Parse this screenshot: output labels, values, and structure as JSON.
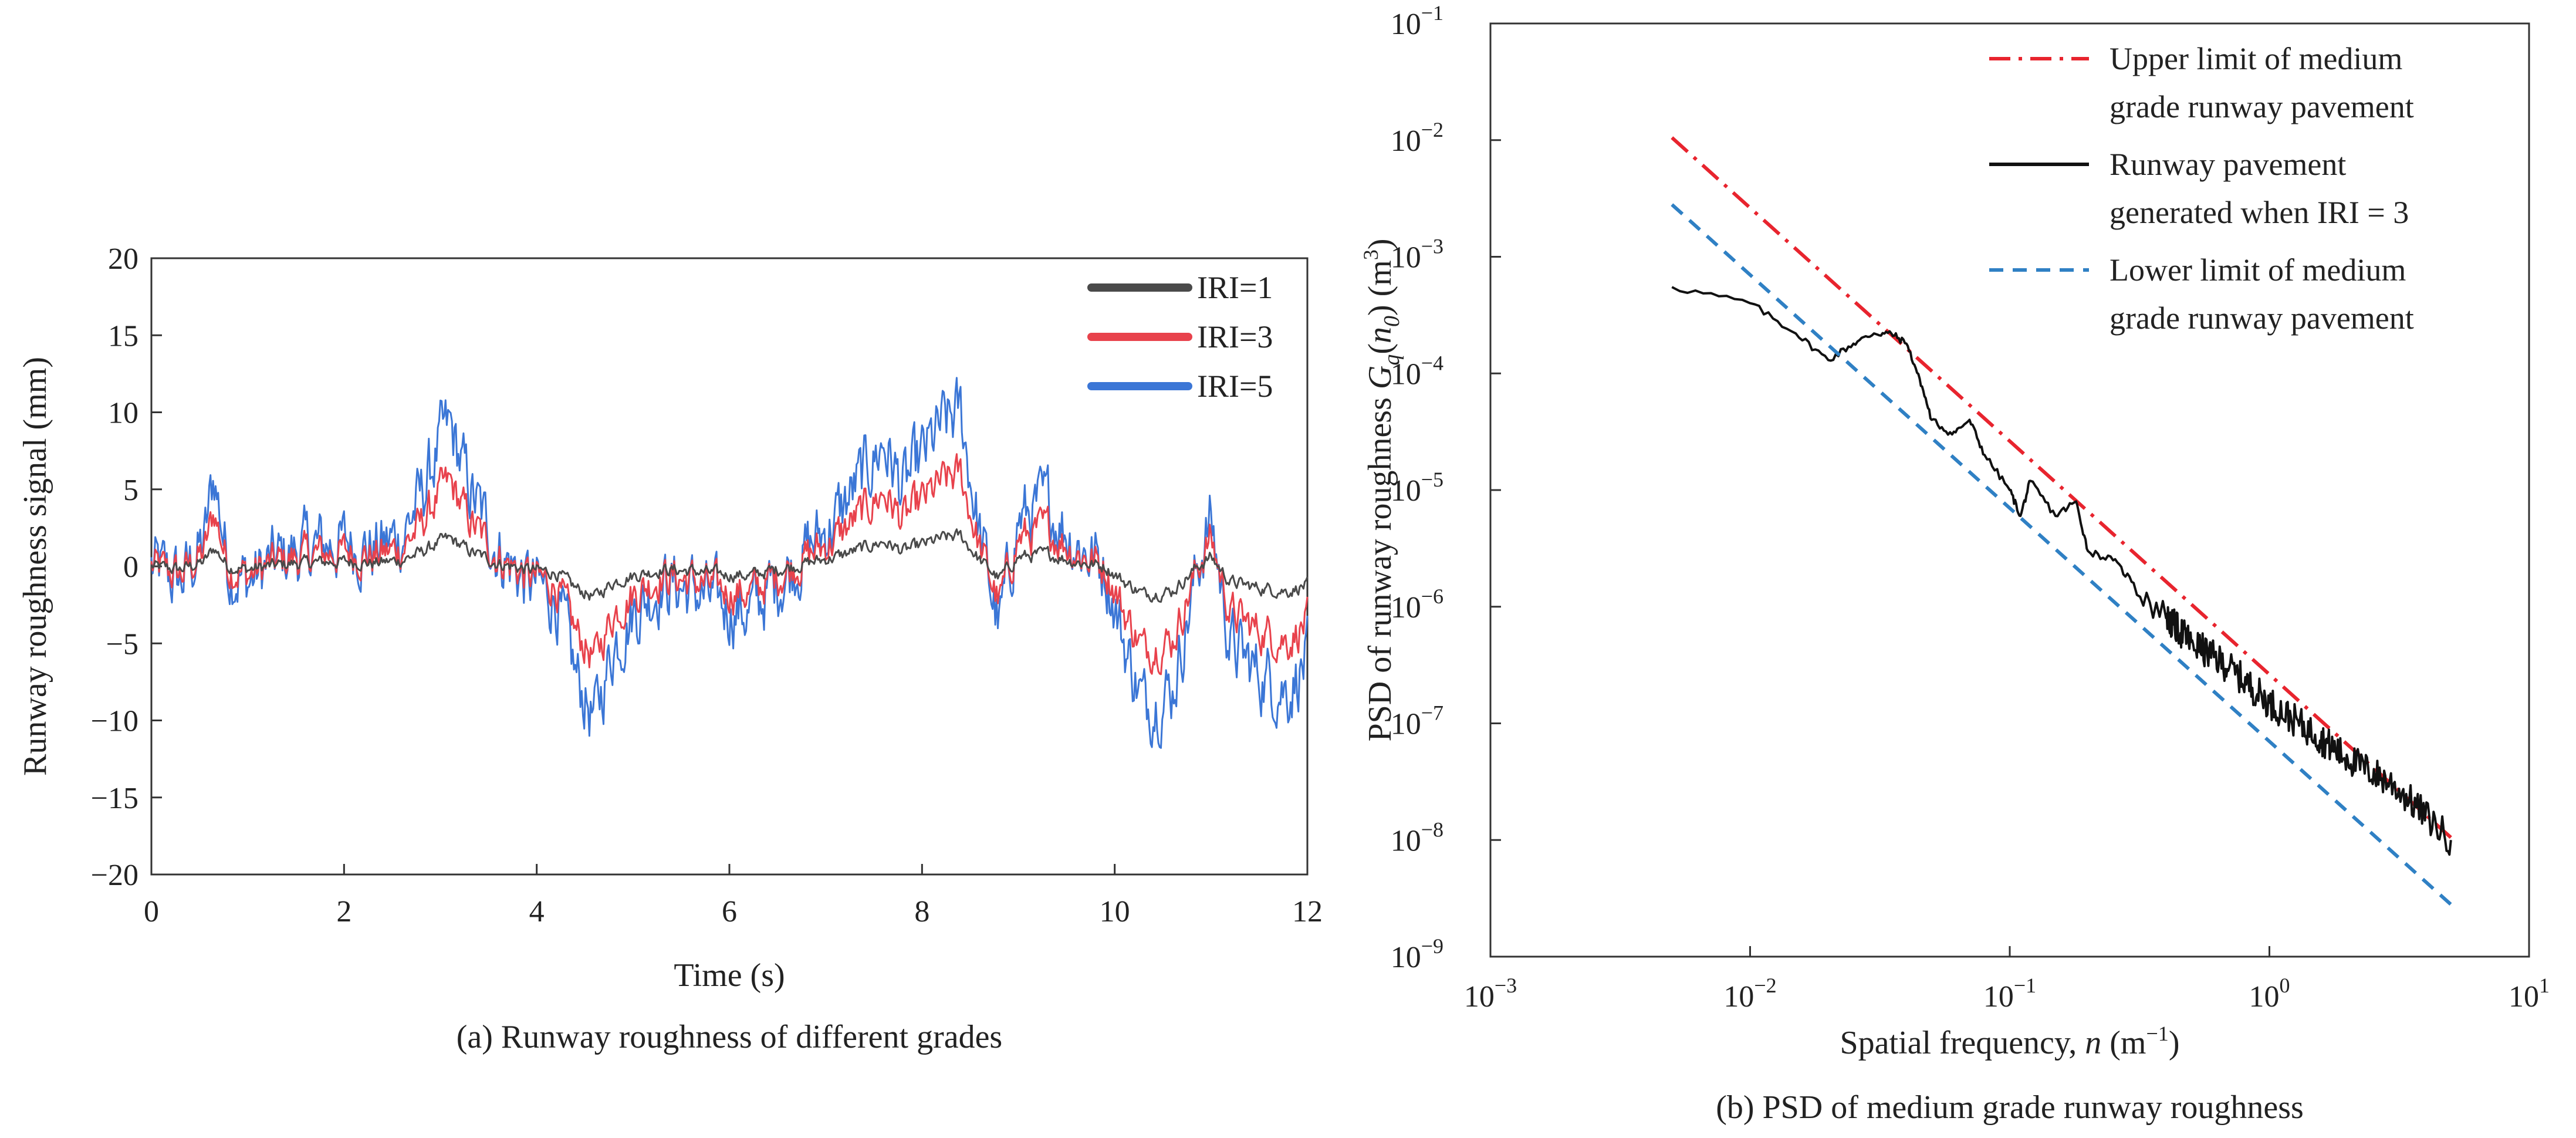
{
  "chart_data": [
    {
      "type": "line",
      "caption": "(a) Runway roughness of different grades",
      "xlabel": "Time (s)",
      "ylabel": "Runway roughness signal (mm)",
      "xlim": [
        0,
        12
      ],
      "ylim": [
        -20,
        20
      ],
      "xticks": [
        0,
        2,
        4,
        6,
        8,
        10,
        12
      ],
      "yticks": [
        -20,
        -15,
        -10,
        -5,
        0,
        5,
        10,
        15,
        20
      ],
      "x_tick_labels": [
        "0",
        "2",
        "4",
        "6",
        "8",
        "10",
        "12"
      ],
      "y_tick_labels": [
        "−20",
        "−15",
        "−10",
        "−5",
        "0",
        "5",
        "10",
        "15",
        "20"
      ],
      "legend_position": "top-right",
      "base_profile": {
        "t": [
          0,
          0.3,
          0.55,
          0.65,
          0.8,
          1.0,
          1.2,
          1.5,
          1.9,
          2.1,
          2.3,
          2.6,
          2.8,
          3.0,
          3.1,
          3.3,
          3.6,
          3.9,
          4.2,
          4.4,
          4.6,
          4.8,
          5.0,
          5.3,
          5.6,
          5.9,
          6.2,
          6.5,
          6.8,
          7.1,
          7.4,
          7.6,
          7.8,
          8.0,
          8.2,
          8.4,
          8.6,
          8.8,
          9.0,
          9.3,
          9.6,
          9.9,
          10.1,
          10.3,
          10.6,
          10.9,
          11.0,
          11.2,
          11.5,
          11.8,
          12.0
        ],
        "unit_amplitude": [
          0,
          -0.2,
          0.3,
          1.2,
          0,
          -0.2,
          0,
          0.2,
          0.3,
          0.3,
          0.2,
          0.4,
          0.9,
          1.6,
          1.8,
          1.0,
          0.2,
          -0.2,
          -0.4,
          -1.4,
          -2.0,
          -1.0,
          -0.6,
          -0.2,
          -0.3,
          -0.5,
          -0.6,
          -0.2,
          0.2,
          0.6,
          1.2,
          1.6,
          1.0,
          1.4,
          1.8,
          2.0,
          0.4,
          -0.8,
          0.6,
          0.8,
          0.3,
          0,
          -1.0,
          -1.8,
          -1.6,
          0.2,
          0.6,
          -1.0,
          -1.4,
          -1.6,
          -1.2
        ]
      },
      "series": [
        {
          "name": "IRI=1",
          "scale": 1,
          "noise": 0.35,
          "color": "#4a4a4a"
        },
        {
          "name": "IRI=3",
          "scale": 3,
          "noise": 1.1,
          "color": "#e8424c"
        },
        {
          "name": "IRI=5",
          "scale": 5,
          "noise": 1.9,
          "color": "#3b76d6"
        }
      ]
    },
    {
      "type": "line",
      "scale": "log-log",
      "caption": "(b) PSD of medium grade runway roughness",
      "xlabel": "Spatial frequency, n (m⁻¹)",
      "ylabel": "PSD of runway roughness Gq(n0) (m³)",
      "xlim": [
        0.001,
        10
      ],
      "ylim": [
        1e-09,
        0.1
      ],
      "x_tick_labels": [
        [
          "10",
          "−3"
        ],
        [
          "10",
          "−2"
        ],
        [
          "10",
          "−1"
        ],
        [
          "10",
          "0"
        ],
        [
          "10",
          "1"
        ]
      ],
      "y_tick_labels": [
        [
          "10",
          "−9"
        ],
        [
          "10",
          "−8"
        ],
        [
          "10",
          "−7"
        ],
        [
          "10",
          "−6"
        ],
        [
          "10",
          "−5"
        ],
        [
          "10",
          "−4"
        ],
        [
          "10",
          "−3"
        ],
        [
          "10",
          "−2"
        ],
        [
          "10",
          "−1"
        ]
      ],
      "legend_position": "top-right",
      "series": [
        {
          "name": "Upper limit of medium grade runway pavement",
          "legend_lines": [
            "Upper limit of medium",
            "grade runway pavement"
          ],
          "style": "dash-dot",
          "color": "#e8242e",
          "x": [
            0.005,
            5
          ],
          "y": [
            0.0105,
            1.05e-08
          ]
        },
        {
          "name": "Runway pavement generated when IRI = 3",
          "legend_lines": [
            "Runway pavement",
            "generated when IRI = 3"
          ],
          "style": "solid",
          "color": "#111111",
          "x": [
            0.005,
            0.01,
            0.015,
            0.02,
            0.025,
            0.03,
            0.035,
            0.04,
            0.045,
            0.05,
            0.06,
            0.07,
            0.08,
            0.1,
            0.11,
            0.12,
            0.15,
            0.18,
            0.2,
            0.25,
            0.3,
            0.4,
            0.5,
            0.7,
            1.0,
            1.5,
            2.0,
            3.0,
            5.0
          ],
          "y": [
            0.00055,
            0.0004,
            0.00022,
            0.00013,
            0.00018,
            0.00022,
            0.00022,
            0.00018,
            9e-05,
            4e-05,
            3e-05,
            4e-05,
            2e-05,
            1e-05,
            6e-06,
            1.2e-05,
            6e-06,
            8e-06,
            3e-06,
            2.5e-06,
            1.6e-06,
            8e-07,
            5e-07,
            3e-07,
            1.5e-07,
            8e-08,
            5e-08,
            3e-08,
            1e-08
          ]
        },
        {
          "name": "Lower limit of medium grade runway pavement",
          "legend_lines": [
            "Lower limit of medium",
            "grade runway pavement"
          ],
          "style": "dashed",
          "color": "#2f80c4",
          "x": [
            0.005,
            5
          ],
          "y": [
            0.0028,
            2.8e-09
          ]
        }
      ]
    }
  ]
}
